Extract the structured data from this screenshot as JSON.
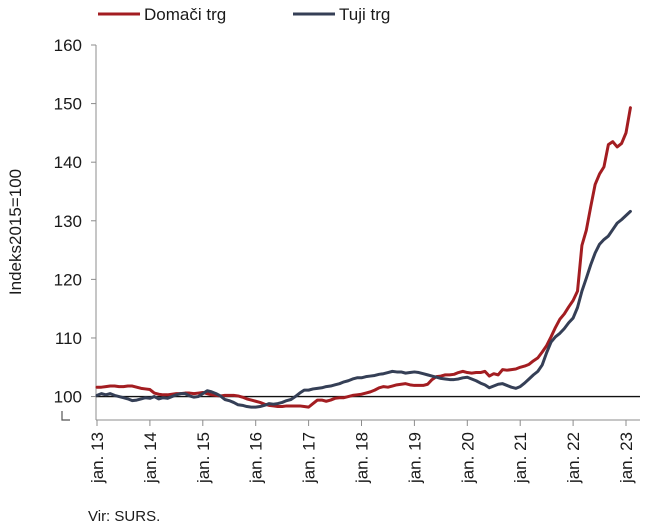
{
  "chart_data": {
    "type": "line",
    "ylabel": "Indeks2015=100",
    "ylim": [
      96,
      160
    ],
    "y_ticks": [
      100,
      110,
      120,
      130,
      140,
      150,
      160
    ],
    "x_ticks": [
      "jan. 13",
      "jan. 14",
      "jan. 15",
      "jan. 16",
      "jan. 17",
      "jan. 18",
      "jan. 19",
      "jan. 20",
      "jan. 21",
      "jan. 22",
      "jan. 23"
    ],
    "reference_line": 100,
    "grid": false,
    "legend_position": "top-left",
    "series": [
      {
        "name": "Domači trg",
        "color": "#a31d21",
        "values": [
          101.6,
          101.6,
          101.7,
          101.8,
          101.8,
          101.7,
          101.7,
          101.8,
          101.8,
          101.6,
          101.4,
          101.3,
          101.2,
          100.6,
          100.4,
          100.3,
          100.3,
          100.4,
          100.5,
          100.5,
          100.6,
          100.6,
          100.5,
          100.6,
          100.7,
          100.5,
          100.3,
          100.2,
          100.1,
          100.2,
          100.2,
          100.2,
          100.1,
          99.9,
          99.6,
          99.4,
          99.2,
          99.0,
          98.7,
          98.5,
          98.4,
          98.3,
          98.3,
          98.4,
          98.4,
          98.4,
          98.4,
          98.3,
          98.2,
          98.8,
          99.4,
          99.4,
          99.2,
          99.4,
          99.7,
          99.8,
          99.8,
          100.0,
          100.2,
          100.3,
          100.4,
          100.6,
          100.8,
          101.1,
          101.5,
          101.7,
          101.6,
          101.8,
          102.0,
          102.1,
          102.2,
          102.0,
          101.9,
          101.9,
          101.9,
          102.1,
          102.9,
          103.4,
          103.5,
          103.7,
          103.7,
          103.8,
          104.1,
          104.3,
          104.1,
          104.0,
          104.1,
          104.1,
          104.3,
          103.5,
          103.9,
          103.7,
          104.6,
          104.5,
          104.6,
          104.7,
          105.0,
          105.2,
          105.5,
          106.1,
          106.6,
          107.6,
          108.7,
          110.2,
          111.8,
          113.2,
          114.1,
          115.3,
          116.4,
          118.0,
          125.8,
          128.4,
          132.4,
          136.2,
          138.0,
          139.2,
          143.0,
          143.5,
          142.6,
          143.2,
          145.0,
          149.3
        ]
      },
      {
        "name": "Tuji trg",
        "color": "#353f56",
        "values": [
          100.2,
          100.5,
          100.3,
          100.5,
          100.2,
          100.0,
          99.8,
          99.6,
          99.3,
          99.4,
          99.6,
          99.8,
          99.7,
          100.0,
          99.6,
          99.8,
          99.7,
          100.0,
          100.3,
          100.5,
          100.5,
          100.1,
          99.9,
          100.0,
          100.5,
          101.0,
          100.8,
          100.5,
          100.1,
          99.5,
          99.3,
          99.0,
          98.6,
          98.5,
          98.3,
          98.2,
          98.2,
          98.3,
          98.5,
          98.8,
          98.7,
          98.8,
          99.0,
          99.3,
          99.5,
          100.0,
          100.6,
          101.1,
          101.1,
          101.3,
          101.4,
          101.5,
          101.7,
          101.8,
          102.0,
          102.2,
          102.5,
          102.7,
          103.0,
          103.2,
          103.2,
          103.4,
          103.5,
          103.6,
          103.8,
          103.9,
          104.1,
          104.3,
          104.2,
          104.2,
          104.0,
          104.1,
          104.2,
          104.1,
          103.9,
          103.7,
          103.5,
          103.3,
          103.1,
          103.0,
          102.9,
          102.9,
          103.0,
          103.2,
          103.3,
          103.0,
          102.7,
          102.3,
          102.0,
          101.5,
          101.8,
          102.1,
          102.2,
          101.9,
          101.6,
          101.4,
          101.7,
          102.3,
          103.0,
          103.7,
          104.3,
          105.4,
          107.5,
          109.3,
          110.2,
          110.8,
          111.6,
          112.6,
          113.4,
          115.2,
          118.0,
          120.2,
          122.5,
          124.5,
          126.0,
          126.8,
          127.4,
          128.5,
          129.6,
          130.2,
          130.9,
          131.6
        ]
      }
    ]
  },
  "source": "Vir: SURS."
}
